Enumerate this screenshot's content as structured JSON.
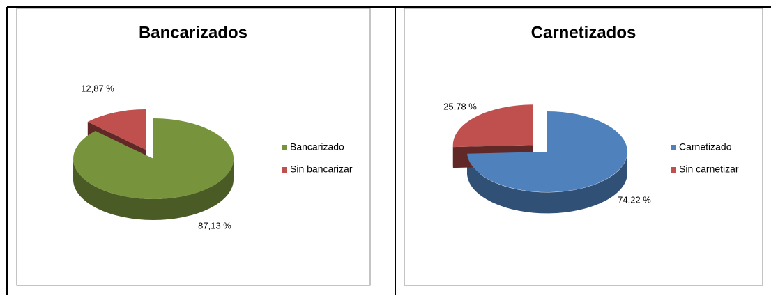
{
  "chart_data": [
    {
      "type": "pie",
      "title": "Bancarizados",
      "categories": [
        "Bancarizado",
        "Sin bancarizar"
      ],
      "values": [
        87.13,
        12.87
      ],
      "value_labels": [
        "87,13 %",
        "12,87 %"
      ],
      "colors": [
        "#77933c",
        "#c0504d"
      ],
      "legend": "right"
    },
    {
      "type": "pie",
      "title": "Carnetizados",
      "categories": [
        "Carnetizado",
        "Sin carnetizar"
      ],
      "values": [
        74.22,
        25.78
      ],
      "value_labels": [
        "74,22 %",
        "25,78 %"
      ],
      "colors": [
        "#4f81bd",
        "#c0504d"
      ],
      "legend": "right"
    }
  ]
}
